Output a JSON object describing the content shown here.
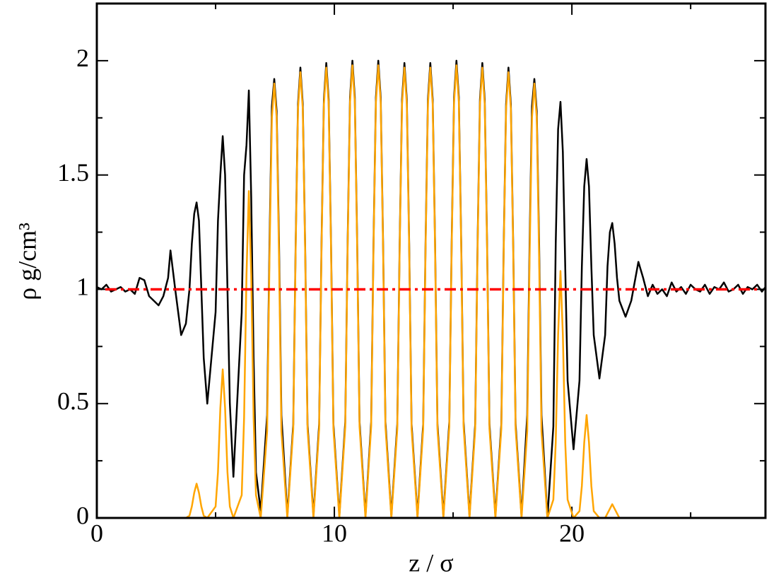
{
  "chart_data": {
    "type": "line",
    "xlabel": "z / σ",
    "ylabel": "ρ g/cm³",
    "xlim": [
      0,
      28.15
    ],
    "ylim": [
      0,
      2.25
    ],
    "xticks": [
      0,
      10,
      20
    ],
    "yticks": [
      0,
      0.5,
      1,
      1.5,
      2
    ],
    "xminorticks": [
      5,
      15,
      25
    ],
    "yminorticks": [
      0.25,
      0.75,
      1.25,
      1.75
    ],
    "hline": {
      "value": 1,
      "color": "#ff0000",
      "style": "dash-dot"
    },
    "x": [
      0,
      0.2,
      0.4,
      0.6,
      0.8,
      1.0,
      1.2,
      1.4,
      1.6,
      1.8,
      2.0,
      2.2,
      2.4,
      2.6,
      2.8,
      3.0,
      3.1,
      3.3,
      3.55,
      3.75,
      3.9,
      4.0,
      4.1,
      4.2,
      4.3,
      4.4,
      4.5,
      4.65,
      5.0,
      5.1,
      5.2,
      5.3,
      5.4,
      5.5,
      5.6,
      5.75,
      6.1,
      6.2,
      6.3,
      6.4,
      6.5,
      6.6,
      6.7,
      6.9,
      7.17,
      7.27,
      7.37,
      7.47,
      7.57,
      7.67,
      7.77,
      8.02,
      8.27,
      8.37,
      8.47,
      8.57,
      8.67,
      8.77,
      8.87,
      9.12,
      9.36,
      9.46,
      9.56,
      9.66,
      9.76,
      9.86,
      9.96,
      10.21,
      10.46,
      10.56,
      10.66,
      10.76,
      10.86,
      10.96,
      11.06,
      11.31,
      11.55,
      11.65,
      11.75,
      11.85,
      11.95,
      12.05,
      12.15,
      12.4,
      12.65,
      12.75,
      12.85,
      12.95,
      13.05,
      13.15,
      13.25,
      13.5,
      13.74,
      13.84,
      13.94,
      14.04,
      14.14,
      14.24,
      14.34,
      14.59,
      14.84,
      14.94,
      15.04,
      15.14,
      15.24,
      15.34,
      15.44,
      15.69,
      15.93,
      16.03,
      16.13,
      16.23,
      16.33,
      16.43,
      16.53,
      16.78,
      17.03,
      17.13,
      17.23,
      17.33,
      17.43,
      17.53,
      17.63,
      17.88,
      18.12,
      18.22,
      18.32,
      18.42,
      18.52,
      18.62,
      18.72,
      18.97,
      19.22,
      19.32,
      19.42,
      19.52,
      19.62,
      19.72,
      19.82,
      20.07,
      20.32,
      20.42,
      20.52,
      20.62,
      20.72,
      20.82,
      20.92,
      21.16,
      21.4,
      21.5,
      21.6,
      21.7,
      21.8,
      21.9,
      22.0,
      22.26,
      22.5,
      22.8,
      23.0,
      23.2,
      23.4,
      23.6,
      23.8,
      24.0,
      24.2,
      24.4,
      24.6,
      24.8,
      25.0,
      25.2,
      25.4,
      25.6,
      25.8,
      26.0,
      26.2,
      26.4,
      26.6,
      26.8,
      27.0,
      27.2,
      27.4,
      27.6,
      27.8,
      28.0,
      28.15
    ],
    "series": [
      {
        "color": "#000000",
        "values": [
          1.01,
          1.0,
          1.02,
          0.99,
          1.0,
          1.01,
          0.99,
          1.0,
          0.98,
          1.05,
          1.04,
          0.97,
          0.95,
          0.93,
          0.97,
          1.05,
          1.17,
          1.0,
          0.8,
          0.85,
          1.0,
          1.2,
          1.33,
          1.38,
          1.3,
          1.0,
          0.7,
          0.5,
          0.9,
          1.3,
          1.5,
          1.67,
          1.5,
          1.0,
          0.5,
          0.18,
          0.9,
          1.5,
          1.63,
          1.87,
          1.4,
          0.7,
          0.2,
          0.03,
          0.45,
          1.2,
          1.8,
          1.92,
          1.78,
          1.2,
          0.45,
          0.01,
          0.41,
          1.19,
          1.81,
          1.97,
          1.81,
          1.19,
          0.41,
          0.01,
          0.41,
          1.2,
          1.83,
          1.99,
          1.83,
          1.2,
          0.41,
          0.01,
          0.42,
          1.21,
          1.84,
          2.0,
          1.84,
          1.21,
          0.42,
          0.01,
          0.42,
          1.21,
          1.84,
          2.0,
          1.84,
          1.21,
          0.42,
          0.01,
          0.41,
          1.2,
          1.83,
          1.99,
          1.83,
          1.2,
          0.41,
          0.01,
          0.41,
          1.2,
          1.83,
          1.99,
          1.83,
          1.2,
          0.41,
          0.01,
          0.42,
          1.21,
          1.84,
          2.0,
          1.84,
          1.21,
          0.42,
          0.01,
          0.41,
          1.2,
          1.83,
          1.99,
          1.83,
          1.2,
          0.41,
          0.01,
          0.41,
          1.19,
          1.81,
          1.97,
          1.81,
          1.19,
          0.41,
          0.01,
          0.45,
          1.2,
          1.8,
          1.92,
          1.78,
          1.2,
          0.45,
          0.0,
          0.4,
          1.2,
          1.7,
          1.82,
          1.6,
          1.1,
          0.6,
          0.3,
          0.6,
          1.1,
          1.45,
          1.57,
          1.45,
          1.1,
          0.8,
          0.61,
          0.8,
          1.1,
          1.25,
          1.29,
          1.2,
          1.05,
          0.95,
          0.88,
          0.95,
          1.12,
          1.05,
          0.97,
          1.02,
          0.98,
          1.0,
          0.97,
          1.03,
          0.99,
          1.01,
          0.98,
          1.02,
          1.0,
          0.99,
          1.02,
          0.98,
          1.01,
          1.0,
          1.03,
          0.99,
          1.0,
          1.02,
          0.98,
          1.01,
          1.0,
          1.02,
          0.99,
          1.01
        ]
      },
      {
        "color": "#ffa500",
        "values": [
          null,
          null,
          null,
          null,
          null,
          null,
          null,
          null,
          null,
          null,
          null,
          null,
          null,
          null,
          null,
          0,
          0,
          0,
          0,
          0,
          0.01,
          0.05,
          0.11,
          0.15,
          0.11,
          0.05,
          0.01,
          0,
          0.05,
          0.2,
          0.48,
          0.65,
          0.48,
          0.2,
          0.05,
          0,
          0.1,
          0.44,
          1.06,
          1.43,
          1.06,
          0.44,
          0.1,
          0,
          0.38,
          1.14,
          1.75,
          1.9,
          1.75,
          1.14,
          0.38,
          0,
          0.39,
          1.17,
          1.79,
          1.95,
          1.79,
          1.17,
          0.39,
          0,
          0.39,
          1.18,
          1.81,
          1.97,
          1.81,
          1.18,
          0.39,
          0,
          0.4,
          1.19,
          1.82,
          1.98,
          1.82,
          1.19,
          0.4,
          0,
          0.4,
          1.19,
          1.82,
          1.98,
          1.82,
          1.19,
          0.4,
          0,
          0.39,
          1.18,
          1.81,
          1.97,
          1.81,
          1.18,
          0.39,
          0,
          0.39,
          1.18,
          1.81,
          1.97,
          1.81,
          1.18,
          0.39,
          0,
          0.4,
          1.19,
          1.82,
          1.98,
          1.82,
          1.19,
          0.4,
          0,
          0.39,
          1.18,
          1.81,
          1.97,
          1.81,
          1.18,
          0.39,
          0,
          0.39,
          1.17,
          1.79,
          1.95,
          1.79,
          1.17,
          0.39,
          0,
          0.38,
          1.14,
          1.75,
          1.9,
          1.75,
          1.14,
          0.38,
          0,
          0.08,
          0.33,
          0.8,
          1.08,
          0.8,
          0.33,
          0.08,
          0,
          0.03,
          0.14,
          0.33,
          0.45,
          0.33,
          0.14,
          0.03,
          0,
          0,
          0.02,
          0.04,
          0.06,
          0.04,
          0.02,
          0,
          0,
          0,
          0,
          0,
          0,
          0,
          0,
          0,
          0,
          null,
          null,
          null,
          null,
          null,
          null,
          null,
          null,
          null,
          null,
          null,
          null,
          null,
          null,
          null,
          null,
          null,
          null,
          null,
          null,
          null
        ]
      }
    ]
  }
}
